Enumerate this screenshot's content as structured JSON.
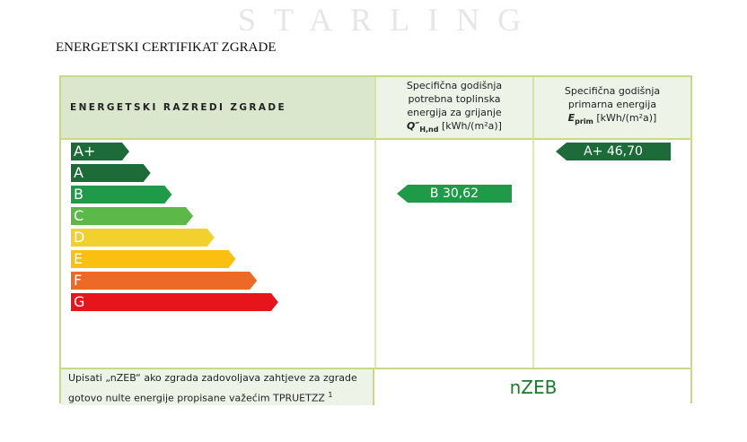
{
  "title": "ENERGETSKI CERTIFIKAT ZGRADE",
  "header": {
    "col1": "ENERGETSKI RAZREDI ZGRADE",
    "col2": {
      "l1": "Specifična godišnja",
      "l2": "potrebna toplinska",
      "l3": "energija za grijanje",
      "sym": "Q″",
      "sub": "H,nd",
      "unit": "[kWh/(m²a)]"
    },
    "col3": {
      "l1": "Specifična godišnja",
      "l2": "primarna energija",
      "sym": "E",
      "sub": "prim",
      "unit": "[kWh/(m²a)]"
    }
  },
  "classes": [
    {
      "label": "A+",
      "color": "#1d6b38"
    },
    {
      "label": "A",
      "color": "#1d6b38"
    },
    {
      "label": "B",
      "color": "#1e9a48"
    },
    {
      "label": "C",
      "color": "#5db84a"
    },
    {
      "label": "D",
      "color": "#f2d02e"
    },
    {
      "label": "E",
      "color": "#fbbf12"
    },
    {
      "label": "F",
      "color": "#ec6a25"
    },
    {
      "label": "G",
      "color": "#e8141b"
    }
  ],
  "heating": {
    "value": "B  30,62",
    "class": "B",
    "color": "#1e9a48"
  },
  "primary": {
    "value": "A+  46,70",
    "class": "A+",
    "color": "#1d6b38"
  },
  "nzeb": {
    "text1": "Upisati „nZEB“ ako zgrada zadovoljava zahtjeve za zgrade",
    "text2": "gotovo nulte energije propisane važećim TPRUETZZ",
    "footnote": "1",
    "value": "nZEB"
  },
  "watermark": "STARLING"
}
